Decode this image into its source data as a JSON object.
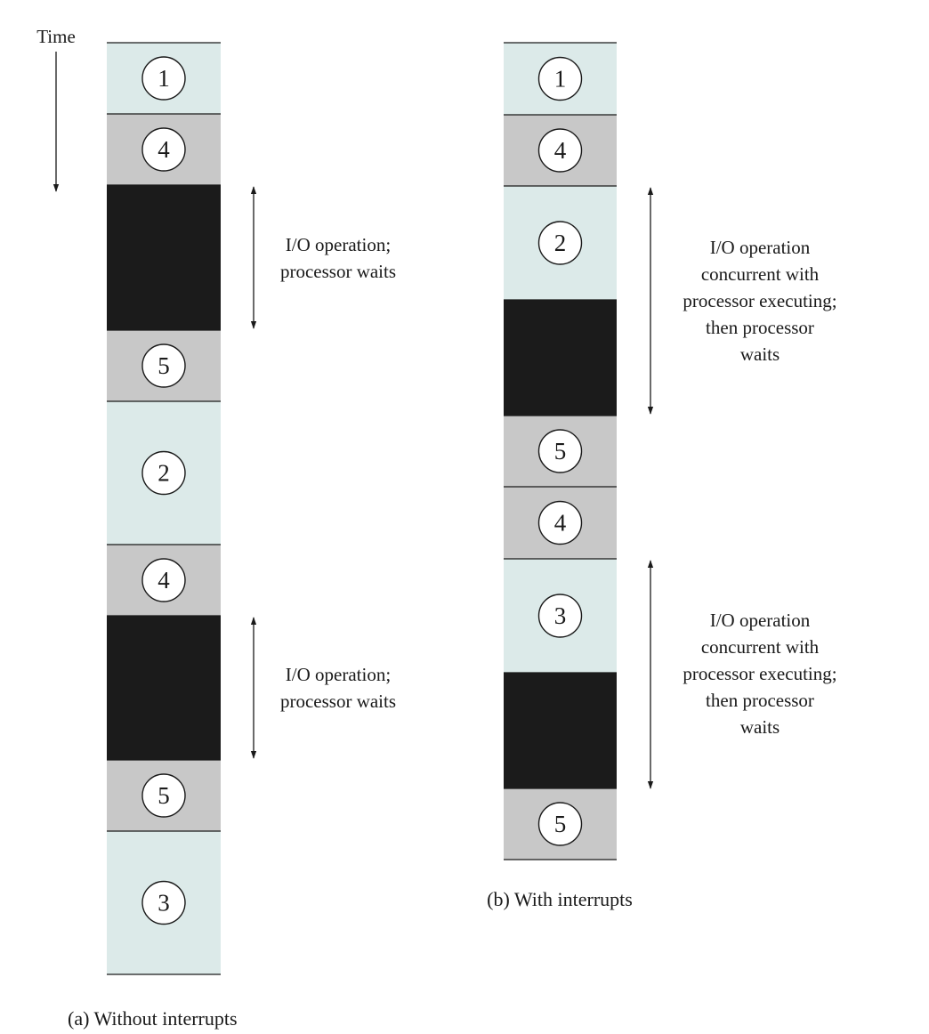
{
  "time_label": "Time",
  "colors": {
    "user": "#dceae9",
    "handler": "#c8c8c8",
    "io_wait": "#1b1b1b",
    "line": "#1a1a1a"
  },
  "panels": [
    {
      "caption": "(a) Without interrupts",
      "segments": [
        {
          "kind": "user",
          "label": "1"
        },
        {
          "kind": "handler",
          "label": "4"
        },
        {
          "kind": "io_wait",
          "label": ""
        },
        {
          "kind": "handler",
          "label": "5"
        },
        {
          "kind": "user",
          "label": "2"
        },
        {
          "kind": "handler",
          "label": "4"
        },
        {
          "kind": "io_wait",
          "label": ""
        },
        {
          "kind": "handler",
          "label": "5"
        },
        {
          "kind": "user",
          "label": "3"
        }
      ],
      "annotations": [
        {
          "lines": [
            "I/O operation;",
            "processor waits"
          ]
        },
        {
          "lines": [
            "I/O operation;",
            "processor waits"
          ]
        }
      ]
    },
    {
      "caption": "(b) With interrupts",
      "segments": [
        {
          "kind": "user",
          "label": "1"
        },
        {
          "kind": "handler",
          "label": "4"
        },
        {
          "kind": "user",
          "label": "2"
        },
        {
          "kind": "io_wait",
          "label": ""
        },
        {
          "kind": "handler",
          "label": "5"
        },
        {
          "kind": "handler",
          "label": "4"
        },
        {
          "kind": "user",
          "label": "3"
        },
        {
          "kind": "io_wait",
          "label": ""
        },
        {
          "kind": "handler",
          "label": "5"
        }
      ],
      "annotations": [
        {
          "lines": [
            "I/O operation",
            "concurrent with",
            "processor executing;",
            "then processor",
            "waits"
          ]
        },
        {
          "lines": [
            "I/O operation",
            "concurrent with",
            "processor executing;",
            "then processor",
            "waits"
          ]
        }
      ]
    }
  ]
}
